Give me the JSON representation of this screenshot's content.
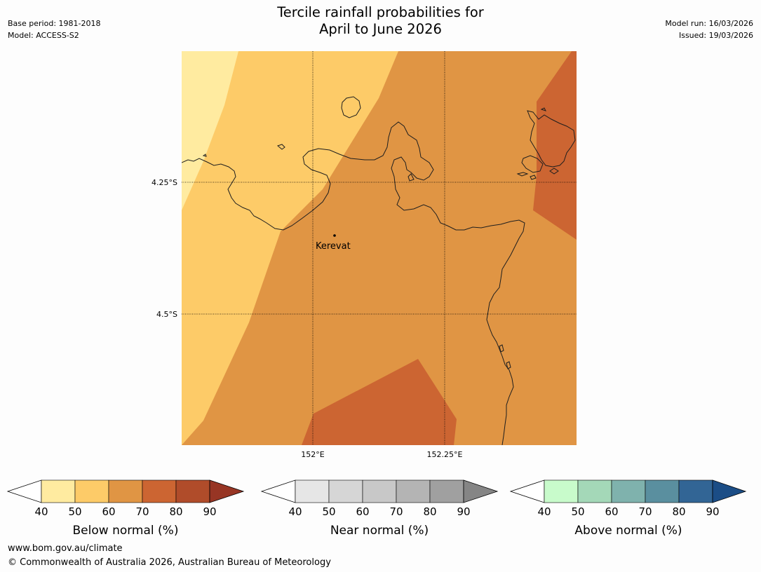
{
  "title": {
    "line1": "Tercile rainfall probabilities for",
    "line2": "April to June 2026"
  },
  "meta": {
    "base_period": "Base period: 1981-2018",
    "model": "Model: ACCESS-S2",
    "model_run": "Model run: 16/03/2026",
    "issued": "Issued: 19/03/2026"
  },
  "map": {
    "place_label": "Kerevat",
    "lat_labels": [
      "4.25°S",
      "4.5°S"
    ],
    "lon_labels": [
      "152°E",
      "152.25°E"
    ]
  },
  "colorbars": [
    {
      "label": "Below normal (%)",
      "colors": [
        "#ffeba0",
        "#fdcb68",
        "#e09544",
        "#cc6532",
        "#b04c2a"
      ],
      "extend_color": "#973524",
      "ticks": [
        "40",
        "50",
        "60",
        "70",
        "80",
        "90"
      ]
    },
    {
      "label": "Near normal (%)",
      "colors": [
        "#e6e6e6",
        "#d6d6d6",
        "#c8c8c8",
        "#b4b4b4",
        "#a0a0a0"
      ],
      "extend_color": "#858585",
      "ticks": [
        "40",
        "50",
        "60",
        "70",
        "80",
        "90"
      ]
    },
    {
      "label": "Above normal (%)",
      "colors": [
        "#c8fbcb",
        "#a4d8b8",
        "#7fb2ad",
        "#5a8f9f",
        "#326595"
      ],
      "extend_color": "#1b4d86",
      "ticks": [
        "40",
        "50",
        "60",
        "70",
        "80",
        "90"
      ]
    }
  ],
  "footer": {
    "url": "www.bom.gov.au/climate",
    "copyright": "© Commonwealth of Australia 2026, Australian Bureau of Meteorology"
  }
}
